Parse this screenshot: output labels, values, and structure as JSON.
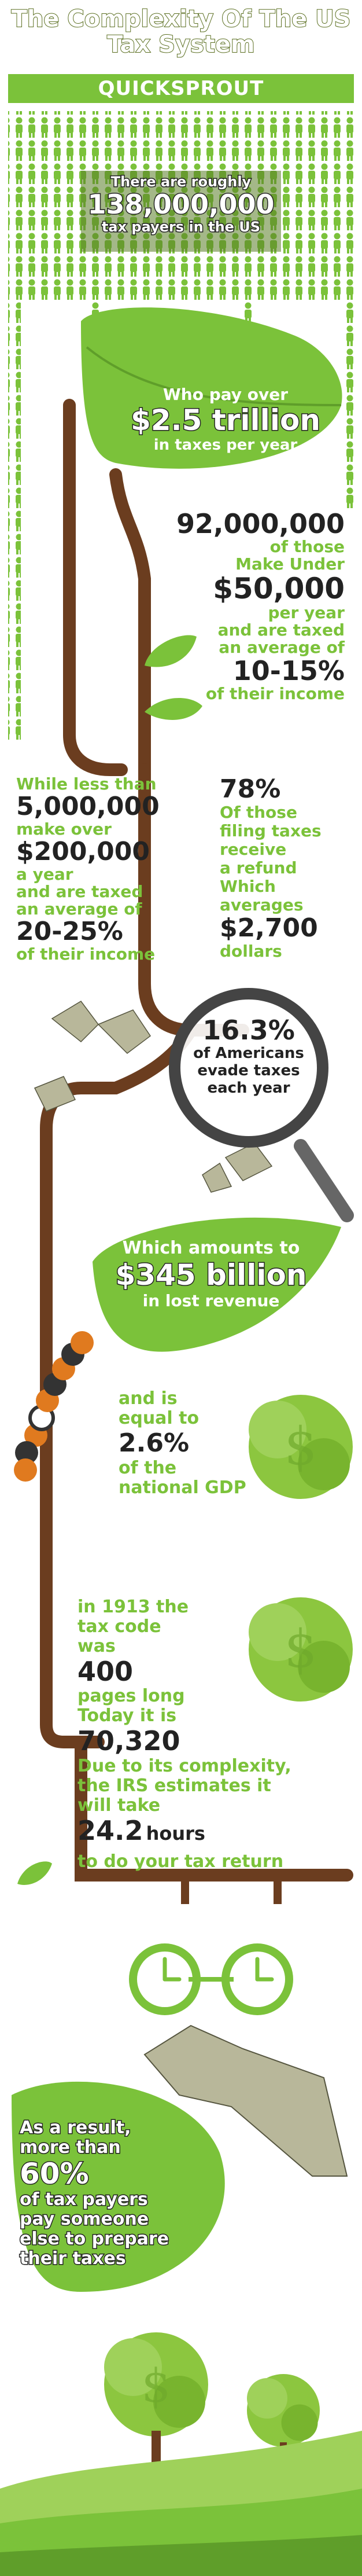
{
  "title_line1": "The Complexity Of The US",
  "title_line2": "Tax System",
  "brand": "QUICKSPROUT",
  "s1": {
    "l1": "There are roughly",
    "num": "138,000,000",
    "l2": "tax payers in the US"
  },
  "s2": {
    "l1": "Who pay over",
    "num": "$2.5 trillion",
    "l2": "in taxes per year"
  },
  "s3": {
    "num": "92,000,000",
    "l1": "of those",
    "l2": "Make Under",
    "num2": "$50,000",
    "l3": "per year",
    "l4": "and are taxed",
    "l5": "an average of",
    "num3": "10-15%",
    "l6": "of their income"
  },
  "s4": {
    "l1": "While less than",
    "num": "5,000,000",
    "l2": "make over",
    "num2": "$200,000",
    "l3": "a year",
    "l4": "and are taxed",
    "l5": "an average of",
    "num3": "20-25%",
    "l6": "of their income"
  },
  "s5": {
    "num": "78%",
    "l1": "Of those",
    "l2": "filing taxes",
    "l3": "receive",
    "l4": "a refund",
    "l5": "Which",
    "l6": "averages",
    "num2": "$2,700",
    "l7": "dollars"
  },
  "s6": {
    "num": "16.3%",
    "l1": "of Americans",
    "l2": "evade taxes",
    "l3": "each year"
  },
  "s7": {
    "l1": "Which amounts to",
    "num": "$345 billion",
    "l2": "in lost revenue"
  },
  "s8": {
    "l1": "and is",
    "l2": "equal to",
    "num": "2.6%",
    "l3": "of the",
    "l4": "national GDP"
  },
  "s9": {
    "l1": "in 1913 the",
    "l2": "tax code",
    "l3": "was",
    "num": "400",
    "l4": "pages long",
    "l5": "Today it is",
    "num2": "70,320"
  },
  "s10": {
    "l1": "Due to its complexity,",
    "l2": "the IRS estimates it",
    "l3": "will take",
    "num": "24.2",
    "unit": "hours",
    "l4": "to do your tax return"
  },
  "s11": {
    "l1": "As a result,",
    "l2": "more than",
    "num": "60%",
    "l3": "of tax payers",
    "l4": "pay someone",
    "l5": "else to prepare",
    "l6": "their taxes"
  },
  "colors": {
    "green": "#7bc23a",
    "dark_green": "#5f9e2a",
    "brown": "#6b3d1f",
    "text": "#222222"
  }
}
